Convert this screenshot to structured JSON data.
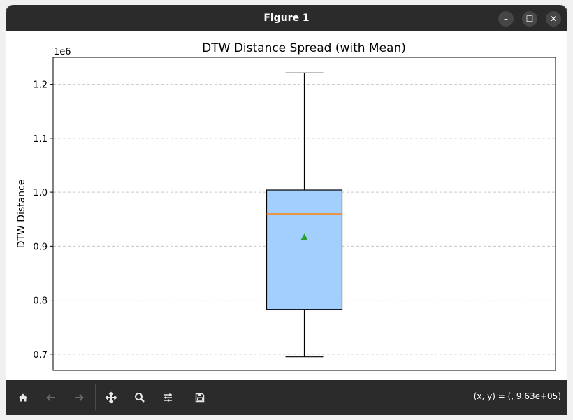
{
  "window": {
    "title": "Figure 1",
    "minimize_glyph": "–",
    "maximize_glyph": "☐",
    "close_glyph": "✕"
  },
  "toolbar": {
    "buttons": [
      "home-icon",
      "back-icon",
      "forward-icon",
      "pan-icon",
      "zoom-icon",
      "configure-icon",
      "save-icon"
    ],
    "coords_text": "(x, y) = (, 9.63e+05)"
  },
  "chart_data": {
    "type": "box",
    "title": "DTW Distance Spread (with Mean)",
    "ylabel": "DTW Distance",
    "y_multiplier_label": "1e6",
    "ylim": [
      0.67,
      1.25
    ],
    "yticks": [
      0.7,
      0.8,
      0.9,
      1.0,
      1.1,
      1.2
    ],
    "ytick_labels": [
      "0.7",
      "0.8",
      "0.9",
      "1.0",
      "1.1",
      "1.2"
    ],
    "grid": "y-dashed",
    "box": {
      "whisker_low": 0.695,
      "q1": 0.783,
      "median": 0.96,
      "q3": 1.004,
      "whisker_high": 1.221,
      "mean": 0.917
    },
    "colors": {
      "box_fill": "#a3cfff",
      "median": "#ff7f0e",
      "mean": "#2ca02c",
      "grid": "#c8c8c8"
    }
  }
}
